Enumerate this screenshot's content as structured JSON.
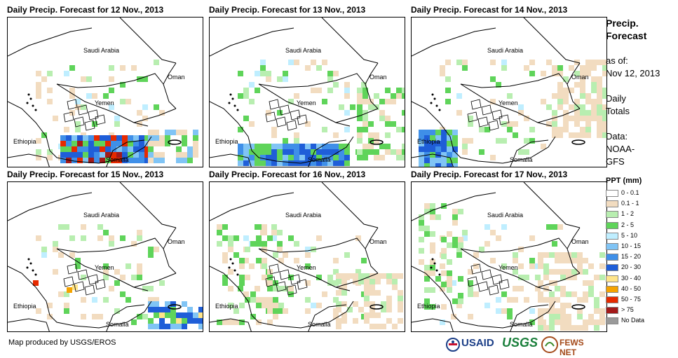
{
  "panels": [
    {
      "title": "Daily Precip. Forecast for 12 Nov., 2013",
      "labels": {
        "saudi": "Saudi Arabia",
        "oman": "Oman",
        "yemen": "Yemen",
        "ethiopia": "Ethiopia",
        "somalia": "Somalia"
      }
    },
    {
      "title": "Daily Precip. Forecast for 13 Nov., 2013",
      "labels": {
        "saudi": "Saudi Arabia",
        "oman": "Oman",
        "yemen": "Yemen",
        "ethiopia": "Ethiopia",
        "somalia": "Somalia"
      }
    },
    {
      "title": "Daily Precip. Forecast for 14 Nov., 2013",
      "labels": {
        "saudi": "Saudi Arabia",
        "oman": "Oman",
        "yemen": "Yemen",
        "ethiopia": "Ethiopia",
        "somalia": "Somalia"
      }
    },
    {
      "title": "Daily Precip. Forecast for 15 Nov., 2013",
      "labels": {
        "saudi": "Saudi Arabia",
        "oman": "Oman",
        "yemen": "Yemen",
        "ethiopia": "Ethiopia",
        "somalia": "Somalia"
      }
    },
    {
      "title": "Daily Precip. Forecast for 16 Nov., 2013",
      "labels": {
        "saudi": "Saudi Arabia",
        "oman": "Oman",
        "yemen": "Yemen",
        "ethiopia": "Ethiopia",
        "somalia": "Somalia"
      }
    },
    {
      "title": "Daily Precip. Forecast for 17 Nov., 2013",
      "labels": {
        "saudi": "Saudi Arabia",
        "oman": "Oman",
        "yemen": "Yemen",
        "ethiopia": "Ethiopia",
        "somalia": "Somalia"
      }
    }
  ],
  "sidebar": {
    "title_line1": "Precip.",
    "title_line2": "Forecast",
    "asof_label": "as of:",
    "asof_date": "Nov 12, 2013",
    "totals_line1": "Daily",
    "totals_line2": "Totals",
    "data_label": "Data:",
    "data_line1": "NOAA-",
    "data_line2": "GFS"
  },
  "legend": {
    "title": "PPT (mm)",
    "items": [
      {
        "label": "0 - 0.1",
        "color": "#ffffff"
      },
      {
        "label": "0.1 - 1",
        "color": "#f2dcc0"
      },
      {
        "label": "1 - 2",
        "color": "#b8eeb0"
      },
      {
        "label": "2 - 5",
        "color": "#5fd45a"
      },
      {
        "label": "5 - 10",
        "color": "#bfeeff"
      },
      {
        "label": "10 - 15",
        "color": "#80c4f5"
      },
      {
        "label": "15 - 20",
        "color": "#3f8fe8"
      },
      {
        "label": "20 - 30",
        "color": "#1f5ed8"
      },
      {
        "label": "30 - 40",
        "color": "#ffe58a"
      },
      {
        "label": "40 - 50",
        "color": "#f5a300"
      },
      {
        "label": "50 - 75",
        "color": "#e62a00"
      },
      {
        "label": "> 75",
        "color": "#a31a1a"
      },
      {
        "label": "No Data",
        "color": "#9a9a9a"
      }
    ]
  },
  "footer": {
    "credit": "Map produced by USGS/EROS"
  },
  "logos": {
    "usaid": "USAID",
    "usgs": "USGS",
    "fewsnet": "FEWS NET"
  }
}
